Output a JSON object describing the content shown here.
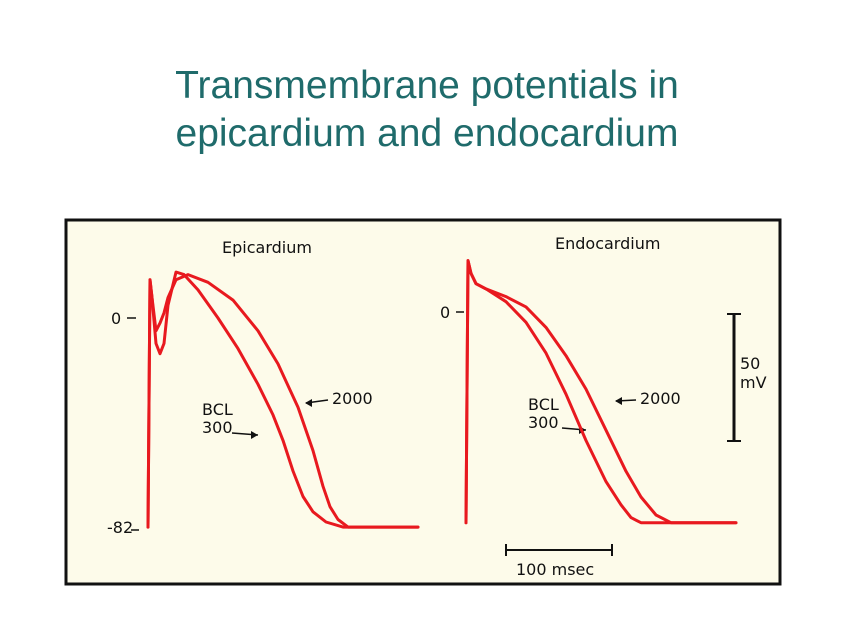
{
  "slide": {
    "title_line1": "Transmembrane potentials in",
    "title_line2": "epicardium and endocardium"
  },
  "colors": {
    "trace": "#e8191f",
    "panel_bg": "#fdfbea",
    "title": "#1f6b6b",
    "ink": "#111111"
  },
  "scale_bars": {
    "voltage": {
      "value": 50,
      "label_line1": "50",
      "label_line2": "mV"
    },
    "time": {
      "value": 100,
      "label": "100 msec"
    }
  },
  "chart_data": [
    {
      "type": "line",
      "title": "Epicardium",
      "xlabel": "",
      "ylabel": "",
      "y_ticks": [
        {
          "value": 0,
          "label": "0"
        },
        {
          "value": -82,
          "label": "-82"
        }
      ],
      "grid": false,
      "annotations": [
        {
          "text_line1": "BCL",
          "text_line2": "300",
          "target_series": "300"
        },
        {
          "text": "2000",
          "target_series": "2000"
        }
      ],
      "series": [
        {
          "name": "300",
          "x": [
            0,
            2,
            4,
            8,
            12,
            16,
            20,
            28,
            36,
            50,
            70,
            90,
            110,
            125,
            135,
            145,
            155,
            165,
            178,
            195,
            215,
            240,
            270
          ],
          "y": [
            -82,
            15,
            8,
            -10,
            -14,
            -10,
            5,
            18,
            17,
            11,
            0,
            -12,
            -26,
            -38,
            -48,
            -60,
            -70,
            -76,
            -80,
            -82,
            -82,
            -82,
            -82
          ]
        },
        {
          "name": "2000",
          "x": [
            0,
            2,
            4,
            8,
            12,
            16,
            20,
            28,
            40,
            60,
            85,
            110,
            130,
            150,
            165,
            175,
            182,
            190,
            200,
            215,
            240,
            270
          ],
          "y": [
            -82,
            15,
            8,
            -5,
            -2,
            2,
            8,
            15,
            17,
            14,
            7,
            -5,
            -18,
            -35,
            -52,
            -66,
            -74,
            -79,
            -82,
            -82,
            -82,
            -82
          ]
        }
      ]
    },
    {
      "type": "line",
      "title": "Endocardium",
      "xlabel": "",
      "ylabel": "",
      "y_ticks": [
        {
          "value": 0,
          "label": "0"
        }
      ],
      "grid": false,
      "annotations": [
        {
          "text_line1": "BCL",
          "text_line2": "300",
          "target_series": "300"
        },
        {
          "text": "2000",
          "target_series": "2000"
        }
      ],
      "series": [
        {
          "name": "300",
          "x": [
            0,
            2,
            5,
            10,
            20,
            40,
            60,
            80,
            100,
            120,
            140,
            155,
            165,
            175,
            190,
            210,
            240,
            270
          ],
          "y": [
            -82,
            20,
            15,
            11,
            9,
            4,
            -4,
            -16,
            -32,
            -50,
            -66,
            -75,
            -80,
            -82,
            -82,
            -82,
            -82,
            -82
          ]
        },
        {
          "name": "2000",
          "x": [
            0,
            2,
            5,
            10,
            20,
            40,
            60,
            80,
            100,
            120,
            140,
            160,
            175,
            190,
            205,
            225,
            250,
            270
          ],
          "y": [
            -82,
            20,
            15,
            11,
            9,
            6,
            2,
            -6,
            -17,
            -30,
            -46,
            -62,
            -72,
            -79,
            -82,
            -82,
            -82,
            -82
          ]
        }
      ]
    }
  ]
}
